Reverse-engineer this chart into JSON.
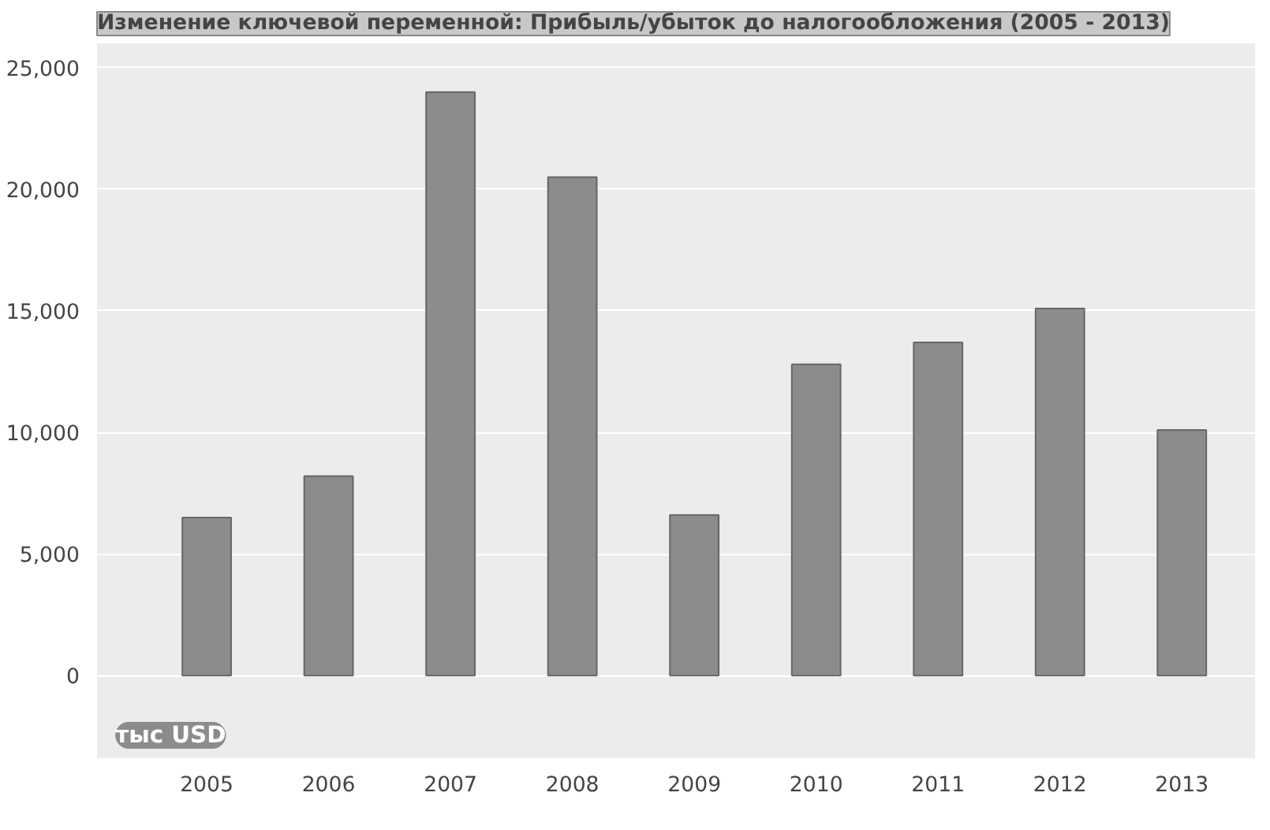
{
  "chart_data": {
    "type": "bar",
    "title": "Изменение ключевой переменной: Прибыль/убыток до налогообложения (2005 - 2013)",
    "ylabel": "тыс USD",
    "categories": [
      "2005",
      "2006",
      "2007",
      "2008",
      "2009",
      "2010",
      "2011",
      "2012",
      "2013"
    ],
    "values": [
      6500,
      8200,
      24000,
      20500,
      6600,
      12800,
      13700,
      15100,
      10100
    ],
    "color": "#8c8c8c",
    "ylim": [
      -3400,
      26000
    ],
    "yticks": [
      {
        "value": 0,
        "label": "0"
      },
      {
        "value": 5000,
        "label": "5,000"
      },
      {
        "value": 10000,
        "label": "10,000"
      },
      {
        "value": 15000,
        "label": "15,000"
      },
      {
        "value": 20000,
        "label": "20,000"
      },
      {
        "value": 25000,
        "label": "25,000"
      }
    ],
    "grid": "y"
  }
}
